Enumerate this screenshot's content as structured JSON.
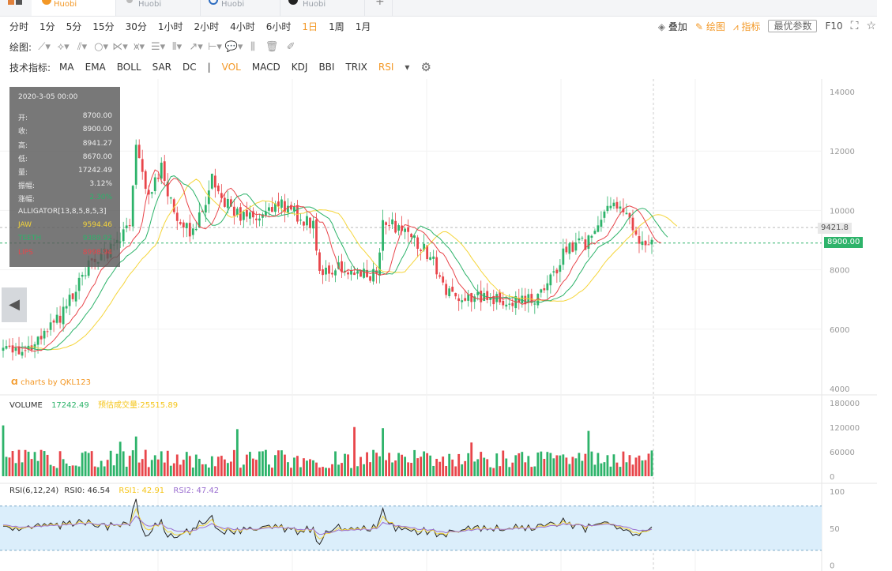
{
  "tabs": [
    {
      "name": "tab-1",
      "exchange": "Huobi",
      "color": "#f39826"
    },
    {
      "name": "tab-2",
      "exchange": "Huobi",
      "color": "#aaa"
    },
    {
      "name": "tab-3",
      "exchange": "Huobi",
      "color": "#2d6cc0"
    },
    {
      "name": "tab-4",
      "exchange": "Huobi",
      "color": "#222"
    }
  ],
  "add_tab": "+",
  "periods": [
    "分时",
    "1分",
    "5分",
    "15分",
    "30分",
    "1小时",
    "2小时",
    "4小时",
    "6小时",
    "1日",
    "1周",
    "1月"
  ],
  "active_period": "1日",
  "right_tools": {
    "overlay": "叠加",
    "draw": "绘图",
    "indicator": "指标",
    "best_params": "最优参数",
    "f10": "F10"
  },
  "draw_label": "绘图:",
  "indicator_label": "技术指标:",
  "indicators": [
    "MA",
    "EMA",
    "BOLL",
    "SAR",
    "DC",
    "|",
    "VOL",
    "MACD",
    "KDJ",
    "BBI",
    "TRIX",
    "RSI"
  ],
  "active_indicators": [
    "VOL",
    "RSI"
  ],
  "tooltip": {
    "date": "2020-3-05 00:00",
    "rows": [
      {
        "k": "开:",
        "v": "8700.00"
      },
      {
        "k": "收:",
        "v": "8900.00"
      },
      {
        "k": "高:",
        "v": "8941.27"
      },
      {
        "k": "低:",
        "v": "8670.00"
      },
      {
        "k": "量:",
        "v": "17242.49"
      },
      {
        "k": "振幅:",
        "v": "3.12%"
      },
      {
        "k": "涨幅:",
        "v": "2.30%"
      }
    ],
    "alligator_title": "ALLIGATOR[13,8,5,8,5,3]",
    "alligator": [
      {
        "k": "JAW",
        "v": "9594.46",
        "color": "#f5d53a"
      },
      {
        "k": "TEETH",
        "v": "9389.92",
        "color": "#2db36a"
      },
      {
        "k": "LIPS",
        "v": "8998.94",
        "color": "#e8454a"
      }
    ]
  },
  "watermark": "charts by QKL123",
  "price_axis": [
    "14000",
    "12000",
    "10000",
    "8000",
    "6000",
    "4000"
  ],
  "price_tag_hline": "9421.8",
  "price_tag_current": "8900.00",
  "volume": {
    "label": "VOLUME",
    "value": "17242.49",
    "est_label": "预估成交量:",
    "est_value": "25515.89",
    "axis": [
      "180000",
      "120000",
      "60000",
      "0"
    ]
  },
  "rsi": {
    "label": "RSI(6,12,24)",
    "rsi0": "RSI0: 46.54",
    "rsi1": "RSI1: 42.91",
    "rsi2": "RSI2: 47.42",
    "axis": [
      "100",
      "50",
      "0"
    ]
  },
  "colors": {
    "up": "#2db36a",
    "down": "#e8454a",
    "accent": "#f39826",
    "jaw": "#f5d53a",
    "teeth": "#2db36a",
    "lips": "#e8454a",
    "rsi0": "#222",
    "rsi1": "#f5d53a",
    "rsi2": "#9b6fd0",
    "rsi_band": "#dbeefb"
  }
}
